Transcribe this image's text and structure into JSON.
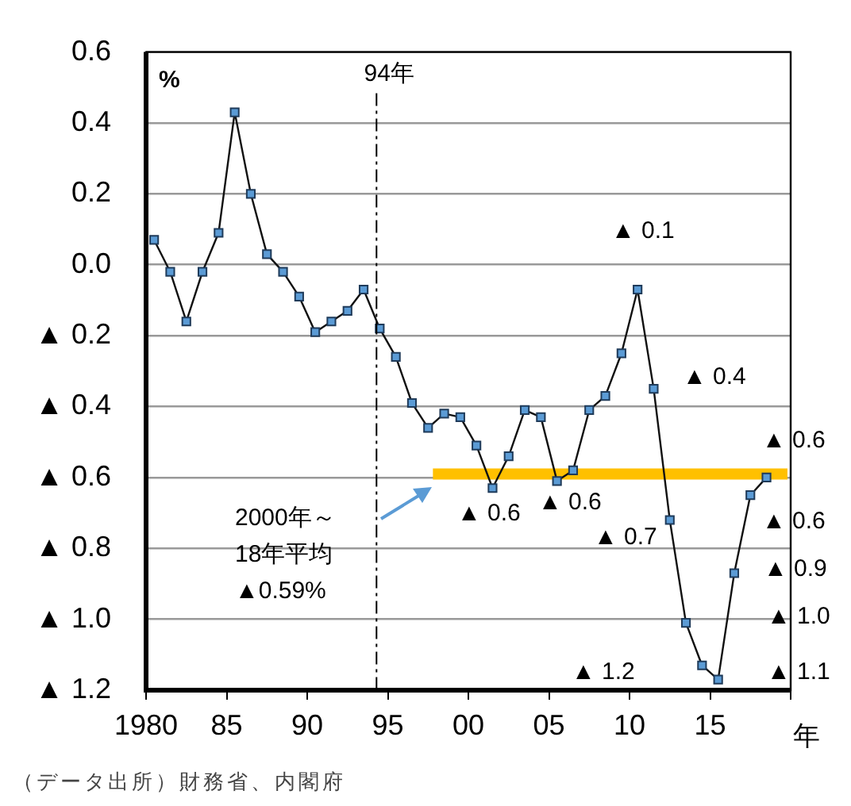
{
  "chart_data": {
    "type": "line",
    "ylabel": "%",
    "xlabel": "年",
    "xlim": [
      1980,
      2020
    ],
    "ylim": [
      -1.2,
      0.6
    ],
    "xticks": [
      1980,
      {
        "value": 1985,
        "label": "85"
      },
      {
        "value": 1990,
        "label": "90"
      },
      {
        "value": 1995,
        "label": "95"
      },
      {
        "value": 2000,
        "label": "00"
      },
      {
        "value": 2005,
        "label": "05"
      },
      {
        "value": 2010,
        "label": "10"
      },
      {
        "value": 2015,
        "label": "15"
      },
      {
        "value": 2020,
        "label": null
      }
    ],
    "yticks": [
      0.6,
      0.4,
      0.2,
      {
        "value": 0,
        "label": "0.0"
      },
      {
        "value": -0.2,
        "label": "▲ 0.2"
      },
      {
        "value": -0.4,
        "label": "▲ 0.4"
      },
      {
        "value": -0.6,
        "label": "▲ 0.6"
      },
      {
        "value": -0.8,
        "label": "▲ 0.8"
      },
      {
        "value": -1.0,
        "label": "▲ 1.0"
      },
      {
        "value": -1.2,
        "label": "▲ 1.2"
      }
    ],
    "grid": "y",
    "marker": "square",
    "series": [
      {
        "color": "#5b9bd5",
        "x": [
          1980.5,
          1981.5,
          1982.5,
          1983.5,
          1984.5,
          1985.5,
          1986.5,
          1987.5,
          1988.5,
          1989.5,
          1990.5,
          1991.5,
          1992.5,
          1993.5,
          1994.5,
          1995.5,
          1996.5,
          1997.5,
          1998.5,
          1999.5,
          2000.5,
          2001.5,
          2002.5,
          2003.5,
          2004.5,
          2005.5,
          2006.5,
          2007.5,
          2008.5,
          2009.5,
          2010.5,
          2011.5,
          2012.5,
          2013.5,
          2014.5,
          2015.5,
          2016.5,
          2017.5,
          2018.5
        ],
        "values": [
          0.07,
          -0.02,
          -0.16,
          -0.02,
          0.09,
          0.43,
          0.2,
          0.03,
          -0.02,
          -0.09,
          -0.19,
          -0.16,
          -0.13,
          -0.07,
          -0.18,
          -0.26,
          -0.39,
          -0.46,
          -0.42,
          -0.43,
          -0.51,
          -0.63,
          -0.54,
          -0.41,
          -0.43,
          -0.61,
          -0.58,
          -0.41,
          -0.37,
          -0.25,
          -0.07,
          -0.35,
          -0.72,
          -1.01,
          -1.13,
          -1.17,
          -0.87,
          -0.65,
          -0.6
        ]
      },
      {
        "type": "line",
        "marker": "none",
        "color": "#ffc000",
        "x": [
          1997.8,
          2019.8
        ],
        "values": [
          -0.59,
          -0.59
        ]
      }
    ],
    "ref_lines": [
      {
        "axis": "x",
        "value": 1994.3,
        "label": "94年",
        "line_style": "dashed"
      }
    ],
    "annotations": [
      "▲ 0.1",
      "▲ 0.4",
      "▲ 0.6",
      "▲ 0.6",
      "▲ 0.6",
      "▲ 0.7",
      "▲ 0.6",
      "▲ 0.9",
      "▲ 1.0",
      "▲ 1.2",
      "▲ 1.1",
      "2000年～\n18年平均\n▲0.59%",
      "（データ出所）財務省、内閣府"
    ]
  }
}
